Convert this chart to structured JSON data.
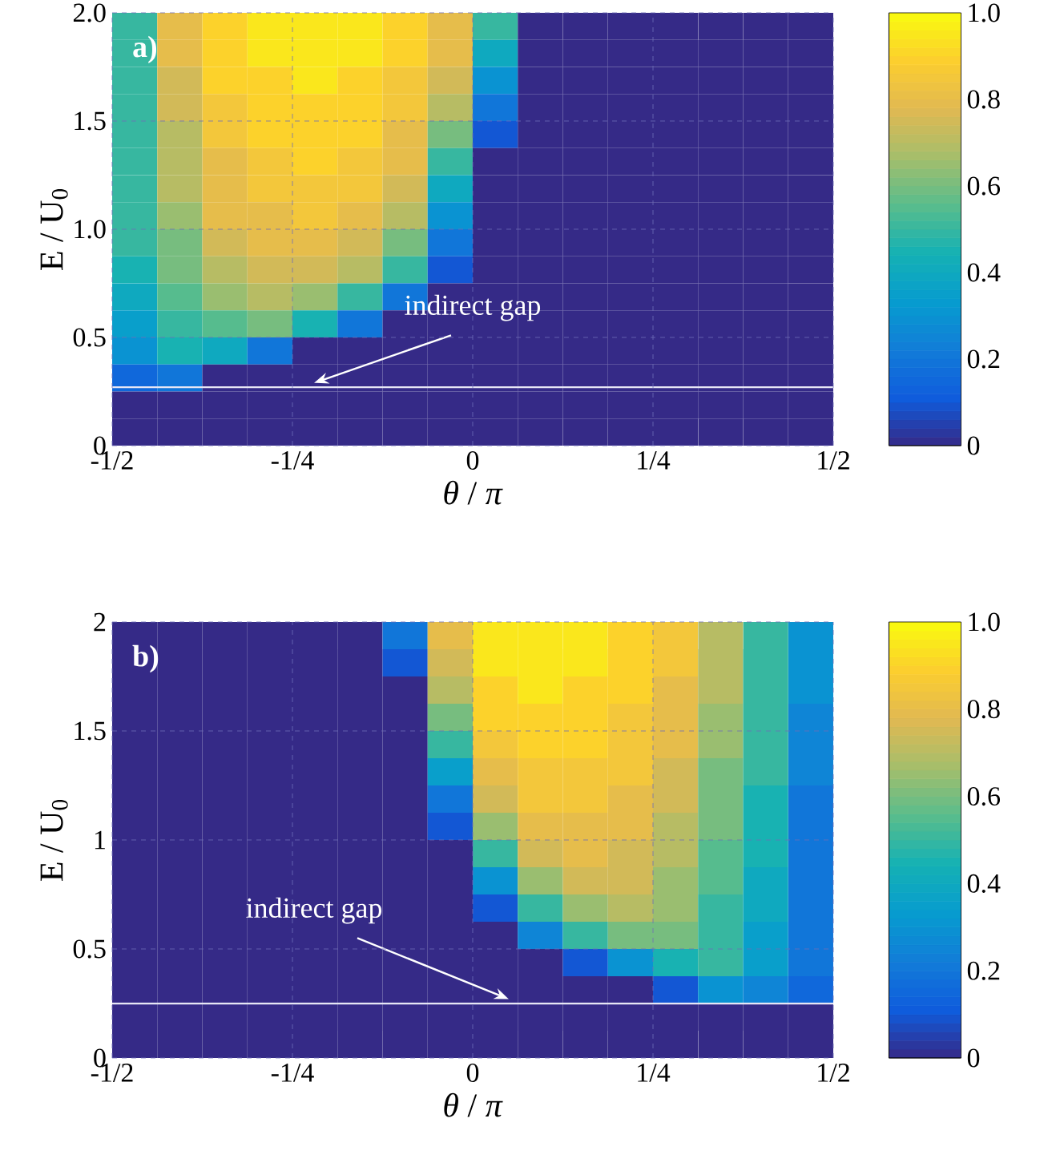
{
  "chart_data": [
    {
      "type": "heatmap",
      "title": "a)",
      "xlabel": "*θ* / *π*",
      "ylabel": "E / U$_{0}$",
      "xlim": [
        -0.5,
        0.5
      ],
      "ylim": [
        0,
        2
      ],
      "xticks": [
        {
          "value": -0.5,
          "label": "-1/2"
        },
        {
          "value": -0.25,
          "label": "-1/4"
        },
        0,
        {
          "value": 0.25,
          "label": "1/4"
        },
        {
          "value": 0.5,
          "label": "1/2"
        }
      ],
      "yticks": [
        0,
        0.5,
        {
          "value": 1,
          "label": "1.0"
        },
        1.5,
        {
          "value": 2,
          "label": "2.0"
        }
      ],
      "grid": true,
      "clim": [
        0,
        1
      ],
      "cticks": [
        0,
        0.2,
        0.4,
        0.6,
        0.8,
        {
          "value": 1,
          "label": "1.0"
        }
      ],
      "ref_lines": [
        {
          "axis": "y",
          "value": 0.27,
          "color": "#e6e6f5"
        }
      ],
      "annotations": [
        {
          "text": "indirect gap",
          "x": -0.22,
          "y": 0.27
        }
      ],
      "x": [
        -0.46875,
        -0.40625,
        -0.34375,
        -0.28125,
        -0.21875,
        -0.15625,
        -0.09375,
        -0.03125,
        0.03125,
        0.09375,
        0.15625,
        0.21875,
        0.28125,
        0.34375,
        0.40625,
        0.46875
      ],
      "y": [
        1.9375,
        1.8125,
        1.6875,
        1.5625,
        1.4375,
        1.3125,
        1.1875,
        1.0625,
        0.9375,
        0.8125,
        0.6875,
        0.5625,
        0.4375,
        0.3125,
        0.1875,
        0.0625
      ],
      "cells": [
        [
          0.5,
          0.8,
          0.9,
          0.95,
          0.95,
          0.95,
          0.9,
          0.8,
          0.5,
          0,
          0,
          0,
          0,
          0,
          0,
          0
        ],
        [
          0.5,
          0.8,
          0.9,
          0.95,
          0.95,
          0.95,
          0.9,
          0.8,
          0.4,
          0,
          0,
          0,
          0,
          0,
          0,
          0
        ],
        [
          0.5,
          0.75,
          0.9,
          0.9,
          0.95,
          0.9,
          0.85,
          0.75,
          0.3,
          0,
          0,
          0,
          0,
          0,
          0,
          0
        ],
        [
          0.5,
          0.75,
          0.85,
          0.9,
          0.9,
          0.9,
          0.85,
          0.7,
          0.2,
          0,
          0,
          0,
          0,
          0,
          0,
          0
        ],
        [
          0.5,
          0.7,
          0.85,
          0.9,
          0.9,
          0.9,
          0.8,
          0.6,
          0.1,
          0,
          0,
          0,
          0,
          0,
          0,
          0
        ],
        [
          0.5,
          0.7,
          0.8,
          0.85,
          0.9,
          0.85,
          0.8,
          0.5,
          0,
          0,
          0,
          0,
          0,
          0,
          0,
          0
        ],
        [
          0.5,
          0.7,
          0.8,
          0.85,
          0.85,
          0.85,
          0.75,
          0.4,
          0,
          0,
          0,
          0,
          0,
          0,
          0,
          0
        ],
        [
          0.5,
          0.65,
          0.8,
          0.8,
          0.85,
          0.8,
          0.7,
          0.3,
          0,
          0,
          0,
          0,
          0,
          0,
          0,
          0
        ],
        [
          0.5,
          0.6,
          0.75,
          0.8,
          0.8,
          0.75,
          0.6,
          0.2,
          0,
          0,
          0,
          0,
          0,
          0,
          0,
          0
        ],
        [
          0.45,
          0.6,
          0.7,
          0.75,
          0.75,
          0.7,
          0.5,
          0.1,
          0,
          0,
          0,
          0,
          0,
          0,
          0,
          0
        ],
        [
          0.4,
          0.55,
          0.65,
          0.7,
          0.65,
          0.5,
          0.2,
          0,
          0,
          0,
          0,
          0,
          0,
          0,
          0,
          0
        ],
        [
          0.35,
          0.5,
          0.55,
          0.6,
          0.45,
          0.2,
          0,
          0,
          0,
          0,
          0,
          0,
          0,
          0,
          0,
          0
        ],
        [
          0.3,
          0.45,
          0.4,
          0.2,
          0,
          0,
          0,
          0,
          0,
          0,
          0,
          0,
          0,
          0,
          0,
          0
        ],
        [
          0.15,
          0.2,
          0,
          0,
          0,
          0,
          0,
          0,
          0,
          0,
          0,
          0,
          0,
          0,
          0,
          0
        ],
        [
          0,
          0,
          0,
          0,
          0,
          0,
          0,
          0,
          0,
          0,
          0,
          0,
          0,
          0,
          0,
          0
        ],
        [
          0,
          0,
          0,
          0,
          0,
          0,
          0,
          0,
          0,
          0,
          0,
          0,
          0,
          0,
          0,
          0
        ]
      ]
    },
    {
      "type": "heatmap",
      "title": "b)",
      "xlabel": "*θ* / *π*",
      "ylabel": "E / U$_{0}$",
      "xlim": [
        -0.5,
        0.5
      ],
      "ylim": [
        0,
        2
      ],
      "xticks": [
        {
          "value": -0.5,
          "label": "-1/2"
        },
        {
          "value": -0.25,
          "label": "-1/4"
        },
        0,
        {
          "value": 0.25,
          "label": "1/4"
        },
        {
          "value": 0.5,
          "label": "1/2"
        }
      ],
      "yticks": [
        0,
        0.5,
        1,
        1.5,
        2
      ],
      "grid": true,
      "clim": [
        0,
        1
      ],
      "cticks": [
        0,
        0.2,
        0.4,
        0.6,
        0.8,
        {
          "value": 1,
          "label": "1.0"
        }
      ],
      "ref_lines": [
        {
          "axis": "y",
          "value": 0.25,
          "color": "#e6e6f5"
        }
      ],
      "annotations": [
        {
          "text": "indirect gap",
          "x": 0.05,
          "y": 0.25
        }
      ],
      "x": [
        -0.46875,
        -0.40625,
        -0.34375,
        -0.28125,
        -0.21875,
        -0.15625,
        -0.09375,
        -0.03125,
        0.03125,
        0.09375,
        0.15625,
        0.21875,
        0.28125,
        0.34375,
        0.40625,
        0.46875
      ],
      "y": [
        1.9375,
        1.8125,
        1.6875,
        1.5625,
        1.4375,
        1.3125,
        1.1875,
        1.0625,
        0.9375,
        0.8125,
        0.6875,
        0.5625,
        0.4375,
        0.3125,
        0.1875,
        0.0625
      ],
      "cells": [
        [
          0,
          0,
          0,
          0,
          0,
          0,
          0.2,
          0.8,
          0.95,
          0.95,
          0.95,
          0.9,
          0.85,
          0.7,
          0.5,
          0.3
        ],
        [
          0,
          0,
          0,
          0,
          0,
          0,
          0.1,
          0.75,
          0.95,
          0.95,
          0.95,
          0.9,
          0.85,
          0.7,
          0.5,
          0.3
        ],
        [
          0,
          0,
          0,
          0,
          0,
          0,
          0,
          0.7,
          0.9,
          0.95,
          0.9,
          0.9,
          0.8,
          0.7,
          0.5,
          0.3
        ],
        [
          0,
          0,
          0,
          0,
          0,
          0,
          0,
          0.6,
          0.9,
          0.9,
          0.9,
          0.85,
          0.8,
          0.65,
          0.5,
          0.25
        ],
        [
          0,
          0,
          0,
          0,
          0,
          0,
          0,
          0.5,
          0.85,
          0.9,
          0.9,
          0.85,
          0.8,
          0.65,
          0.5,
          0.25
        ],
        [
          0,
          0,
          0,
          0,
          0,
          0,
          0,
          0.35,
          0.8,
          0.85,
          0.85,
          0.85,
          0.75,
          0.6,
          0.5,
          0.25
        ],
        [
          0,
          0,
          0,
          0,
          0,
          0,
          0,
          0.2,
          0.75,
          0.85,
          0.85,
          0.8,
          0.75,
          0.6,
          0.45,
          0.2
        ],
        [
          0,
          0,
          0,
          0,
          0,
          0,
          0,
          0.1,
          0.65,
          0.8,
          0.8,
          0.8,
          0.7,
          0.6,
          0.45,
          0.2
        ],
        [
          0,
          0,
          0,
          0,
          0,
          0,
          0,
          0,
          0.5,
          0.75,
          0.8,
          0.75,
          0.7,
          0.55,
          0.45,
          0.2
        ],
        [
          0,
          0,
          0,
          0,
          0,
          0,
          0,
          0,
          0.3,
          0.65,
          0.75,
          0.75,
          0.65,
          0.55,
          0.4,
          0.2
        ],
        [
          0,
          0,
          0,
          0,
          0,
          0,
          0,
          0,
          0.1,
          0.5,
          0.65,
          0.7,
          0.65,
          0.5,
          0.4,
          0.2
        ],
        [
          0,
          0,
          0,
          0,
          0,
          0,
          0,
          0,
          0,
          0.25,
          0.5,
          0.6,
          0.6,
          0.5,
          0.35,
          0.2
        ],
        [
          0,
          0,
          0,
          0,
          0,
          0,
          0,
          0,
          0,
          0,
          0.1,
          0.3,
          0.45,
          0.5,
          0.35,
          0.2
        ],
        [
          0,
          0,
          0,
          0,
          0,
          0,
          0,
          0,
          0,
          0,
          0,
          0,
          0.1,
          0.3,
          0.25,
          0.15
        ],
        [
          0,
          0,
          0,
          0,
          0,
          0,
          0,
          0,
          0,
          0,
          0,
          0,
          0,
          0,
          0,
          0
        ],
        [
          0,
          0,
          0,
          0,
          0,
          0,
          0,
          0,
          0,
          0,
          0,
          0,
          0,
          0,
          0,
          0
        ]
      ]
    }
  ]
}
